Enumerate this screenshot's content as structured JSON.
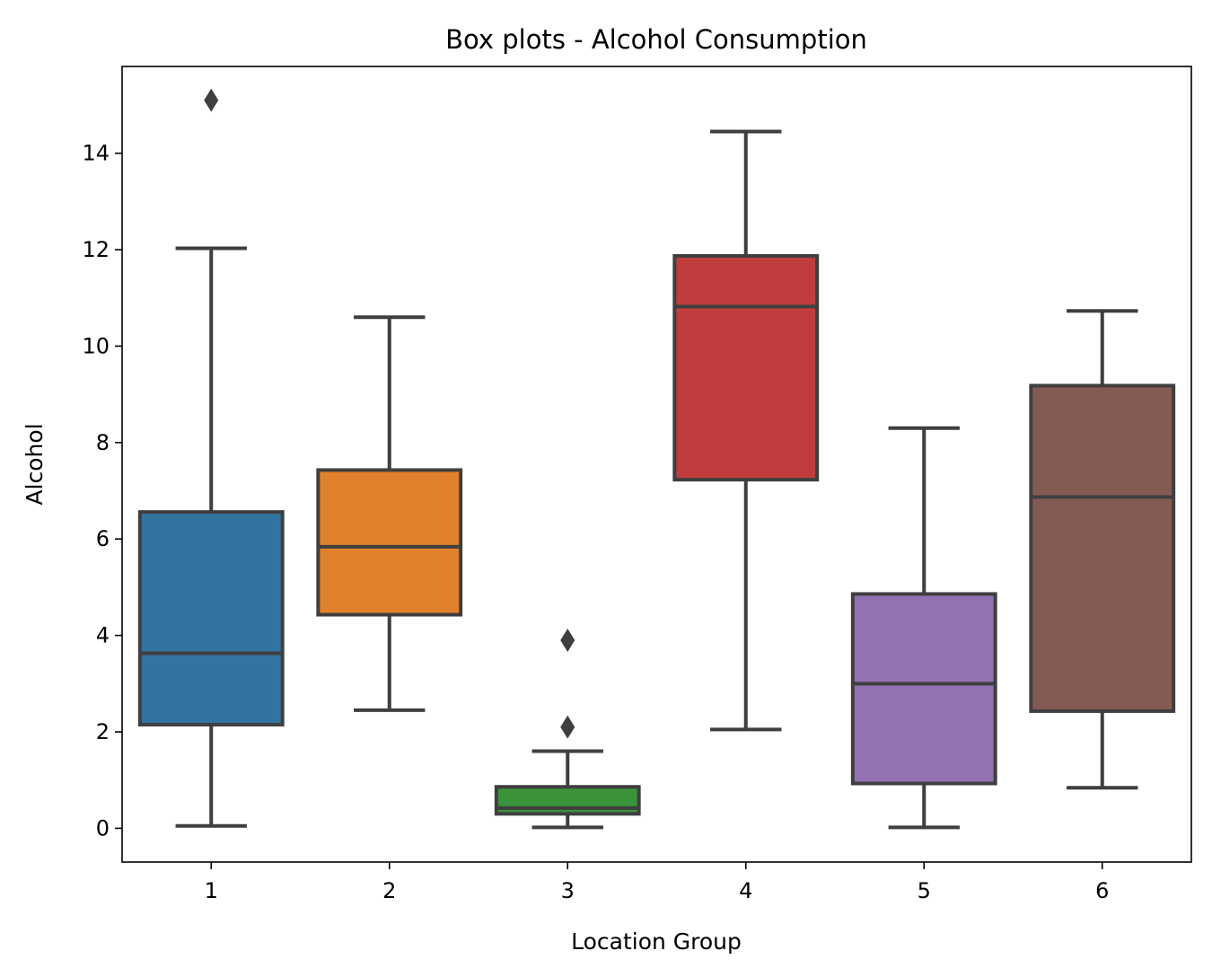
{
  "chart_data": {
    "type": "box",
    "title": "Box plots - Alcohol Consumption",
    "xlabel": "Location Group",
    "ylabel": "Alcohol",
    "ylim": [
      -0.7,
      15.8
    ],
    "yticks": [
      0,
      2,
      4,
      6,
      8,
      10,
      12,
      14
    ],
    "ytick_labels": [
      "0",
      "2",
      "4",
      "6",
      "8",
      "10",
      "12",
      "14"
    ],
    "grid": false,
    "legend": "none",
    "categories": [
      "1",
      "2",
      "3",
      "4",
      "5",
      "6"
    ],
    "boxes": [
      {
        "category": "1",
        "whisker_low": 0.05,
        "q1": 2.15,
        "median": 3.63,
        "q3": 6.56,
        "whisker_high": 12.03,
        "outliers": [
          15.1
        ],
        "color": "#3274a1"
      },
      {
        "category": "2",
        "whisker_low": 2.45,
        "q1": 4.43,
        "median": 5.84,
        "q3": 7.43,
        "whisker_high": 10.6,
        "outliers": [],
        "color": "#e1812c"
      },
      {
        "category": "3",
        "whisker_low": 0.02,
        "q1": 0.3,
        "median": 0.42,
        "q3": 0.86,
        "whisker_high": 1.6,
        "outliers": [
          2.1,
          3.9
        ],
        "color": "#3a923a"
      },
      {
        "category": "4",
        "whisker_low": 2.05,
        "q1": 7.23,
        "median": 10.82,
        "q3": 11.87,
        "whisker_high": 14.45,
        "outliers": [],
        "color": "#c03d3e"
      },
      {
        "category": "5",
        "whisker_low": 0.02,
        "q1": 0.93,
        "median": 3.0,
        "q3": 4.86,
        "whisker_high": 8.3,
        "outliers": [],
        "color": "#9372b2"
      },
      {
        "category": "6",
        "whisker_low": 0.84,
        "q1": 2.43,
        "median": 6.87,
        "q3": 9.18,
        "whisker_high": 10.73,
        "outliers": [],
        "color": "#845b53"
      }
    ],
    "line_color": "#3f3f3f"
  }
}
